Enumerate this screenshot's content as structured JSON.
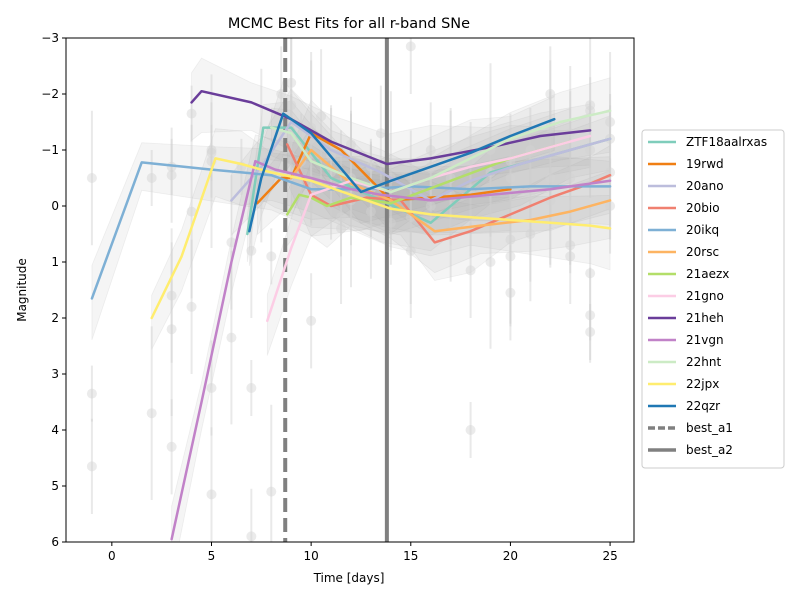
{
  "chart_data": {
    "type": "line",
    "title": "MCMC Best Fits for all r-band SNe",
    "xlabel": "Time [days]",
    "ylabel": "Magnitude",
    "xlim": [
      -2.3,
      26.2
    ],
    "ylim": [
      6,
      -3
    ],
    "y_inverted": true,
    "grid": false,
    "legend_position": "right-outside",
    "x_ticks": [
      "0",
      "5",
      "10",
      "15",
      "20",
      "25"
    ],
    "y_ticks": [
      "−3",
      "−2",
      "−1",
      "0",
      "1",
      "2",
      "3",
      "4",
      "5",
      "6"
    ],
    "series": [
      {
        "name": "ZTF18aalrxas",
        "color": "#7fcdbb",
        "x": [
          6.8,
          7.6,
          9.0,
          11.0,
          13.5,
          16.0,
          19.0,
          22.0,
          25.0
        ],
        "y": [
          0.5,
          -1.4,
          -1.4,
          -0.5,
          -0.1,
          0.3,
          -0.6,
          -0.9,
          -1.2
        ]
      },
      {
        "name": "19rwd",
        "color": "#f07f13",
        "x": [
          7.3,
          8.5,
          9.0,
          10.0,
          11.5,
          14.0,
          16.0,
          18.0,
          20.0
        ],
        "y": [
          -0.05,
          -0.5,
          -0.5,
          -1.3,
          -1.0,
          -0.1,
          -0.15,
          -0.2,
          -0.3
        ]
      },
      {
        "name": "20ano",
        "color": "#bcbddc",
        "x": [
          6.0,
          7.5,
          9.0,
          11.0,
          13.5,
          16.0,
          18.0,
          20.5,
          23.0,
          25.0
        ],
        "y": [
          -0.1,
          -0.7,
          -1.5,
          -1.0,
          -0.6,
          -0.1,
          -0.45,
          -0.75,
          -1.0,
          -1.2
        ]
      },
      {
        "name": "20bio",
        "color": "#f08070",
        "x": [
          8.8,
          10.0,
          11.0,
          12.8,
          14.5,
          16.2,
          18.0,
          20.0,
          22.0,
          24.0,
          25.0
        ],
        "y": [
          -1.1,
          -0.2,
          0.0,
          -0.15,
          -0.1,
          0.65,
          0.45,
          0.15,
          -0.15,
          -0.4,
          -0.55
        ]
      },
      {
        "name": "20ikq",
        "color": "#7eb0d5",
        "x": [
          -1.0,
          1.5,
          5.0,
          8.0,
          10.0,
          12.5,
          15.0,
          18.0,
          21.0,
          25.0
        ],
        "y": [
          1.65,
          -0.78,
          -0.65,
          -0.55,
          -0.3,
          -0.3,
          -0.35,
          -0.3,
          -0.35,
          -0.35
        ]
      },
      {
        "name": "20rsc",
        "color": "#fdb462",
        "x": [
          9.0,
          10.0,
          12.0,
          14.0,
          16.2,
          18.5,
          21.0,
          23.0,
          25.0
        ],
        "y": [
          -0.5,
          -1.0,
          -0.4,
          -0.1,
          0.45,
          0.35,
          0.25,
          0.1,
          -0.1
        ]
      },
      {
        "name": "21aezx",
        "color": "#b3de69",
        "x": [
          8.8,
          9.4,
          10.0,
          10.8,
          12.0,
          14.0,
          17.0,
          20.0,
          23.0
        ],
        "y": [
          0.15,
          -0.2,
          -0.15,
          0.0,
          -0.15,
          -0.05,
          -0.45,
          -0.85,
          -1.15
        ]
      },
      {
        "name": "21gno",
        "color": "#fccde5",
        "x": [
          7.8,
          9.0,
          10.0,
          12.0,
          14.0,
          16.0,
          18.0,
          20.0,
          22.0,
          24.0
        ],
        "y": [
          2.05,
          0.75,
          -0.2,
          -0.45,
          -0.25,
          -0.5,
          -0.7,
          -0.85,
          -1.05,
          -1.25
        ]
      },
      {
        "name": "21heh",
        "color": "#6a3d9a",
        "x": [
          4.0,
          4.5,
          7.0,
          9.0,
          11.0,
          13.8,
          16.0,
          19.0,
          21.5,
          24.0
        ],
        "y": [
          -1.85,
          -2.05,
          -1.85,
          -1.55,
          -1.15,
          -0.75,
          -0.85,
          -1.05,
          -1.25,
          -1.35
        ]
      },
      {
        "name": "21vgn",
        "color": "#c182c8",
        "x": [
          3.0,
          4.5,
          6.0,
          7.2,
          8.2,
          10.0,
          12.0,
          13.5,
          16.0,
          19.0,
          22.0,
          25.0
        ],
        "y": [
          5.95,
          3.5,
          1.0,
          -0.8,
          -0.65,
          -0.5,
          -0.3,
          -0.2,
          -0.1,
          -0.2,
          -0.3,
          -0.45
        ]
      },
      {
        "name": "22hnt",
        "color": "#ccebc5",
        "x": [
          8.0,
          9.0,
          10.0,
          12.0,
          14.0,
          16.0,
          18.0,
          20.0,
          22.5,
          25.0
        ],
        "y": [
          -1.4,
          -1.3,
          -0.8,
          -0.5,
          -0.25,
          -0.5,
          -0.85,
          -1.2,
          -1.5,
          -1.7
        ]
      },
      {
        "name": "22jpx",
        "color": "#ffed6f",
        "x": [
          2.0,
          3.5,
          5.2,
          6.5,
          8.0,
          10.0,
          12.0,
          14.0,
          16.0,
          18.0,
          20.0,
          22.0,
          24.0,
          25.0
        ],
        "y": [
          2.0,
          0.9,
          -0.85,
          -0.75,
          -0.6,
          -0.45,
          -0.2,
          0.05,
          0.15,
          0.2,
          0.25,
          0.3,
          0.35,
          0.4
        ]
      },
      {
        "name": "22qzr",
        "color": "#1f78b4",
        "x": [
          6.9,
          7.5,
          8.6,
          10.0,
          12.5,
          14.0,
          16.0,
          18.0,
          20.0,
          22.2
        ],
        "y": [
          0.45,
          -0.5,
          -1.65,
          -1.3,
          -0.25,
          -0.45,
          -0.7,
          -0.95,
          -1.25,
          -1.55
        ]
      }
    ],
    "vertical_lines": [
      {
        "name": "best_a1",
        "x": 8.7,
        "color": "#808080",
        "style": "dashed"
      },
      {
        "name": "best_a2",
        "x": 13.8,
        "color": "#808080",
        "style": "solid"
      }
    ],
    "scatter_observations": {
      "color": "#d3d3d3",
      "points": [
        [
          -1.0,
          3.35
        ],
        [
          -1.0,
          4.65
        ],
        [
          -1.0,
          -0.5
        ],
        [
          2.0,
          3.7
        ],
        [
          2.0,
          -0.5
        ],
        [
          3.0,
          4.3
        ],
        [
          3.0,
          1.6
        ],
        [
          3.0,
          2.2
        ],
        [
          3.0,
          -0.7
        ],
        [
          3.0,
          -0.55
        ],
        [
          4.0,
          1.8
        ],
        [
          4.0,
          0.1
        ],
        [
          4.0,
          -1.65
        ],
        [
          5.0,
          3.25
        ],
        [
          5.0,
          5.15
        ],
        [
          5.0,
          -0.8
        ],
        [
          5.0,
          -0.95
        ],
        [
          5.0,
          -1.0
        ],
        [
          6.0,
          0.65
        ],
        [
          6.0,
          2.35
        ],
        [
          7.0,
          3.25
        ],
        [
          7.0,
          5.9
        ],
        [
          7.0,
          0.8
        ],
        [
          8.0,
          5.1
        ],
        [
          8.0,
          0.9
        ],
        [
          8.5,
          -2.0
        ],
        [
          9.0,
          -2.2
        ],
        [
          9.0,
          -1.8
        ],
        [
          9.0,
          -1.5
        ],
        [
          10.0,
          2.05
        ],
        [
          10.0,
          -1.4
        ],
        [
          10.0,
          -1.2
        ],
        [
          10.0,
          -0.2
        ],
        [
          11.0,
          -0.9
        ],
        [
          11.0,
          -0.6
        ],
        [
          11.5,
          0.2
        ],
        [
          11.5,
          0.4
        ],
        [
          12.0,
          -1.1
        ],
        [
          12.0,
          -0.5
        ],
        [
          12.0,
          -0.1
        ],
        [
          13.0,
          -0.7
        ],
        [
          13.0,
          -0.3
        ],
        [
          13.0,
          0.1
        ],
        [
          14.0,
          -0.5
        ],
        [
          14.0,
          0.3
        ],
        [
          15.0,
          -2.85
        ],
        [
          15.0,
          0.8
        ],
        [
          15.0,
          0.2
        ],
        [
          16.0,
          -0.7
        ],
        [
          16.0,
          -1.0
        ],
        [
          17.0,
          -0.5
        ],
        [
          17.0,
          -0.2
        ],
        [
          18.0,
          4.0
        ],
        [
          18.0,
          1.15
        ],
        [
          18.0,
          -0.3
        ],
        [
          19.0,
          1.0
        ],
        [
          19.0,
          -0.6
        ],
        [
          20.0,
          1.55
        ],
        [
          20.0,
          0.9
        ],
        [
          20.0,
          0.6
        ],
        [
          20.0,
          -0.5
        ],
        [
          20.0,
          -0.8
        ],
        [
          21.0,
          0.5
        ],
        [
          21.0,
          -0.2
        ],
        [
          21.0,
          -1.0
        ],
        [
          22.0,
          -2.0
        ],
        [
          22.0,
          -1.4
        ],
        [
          22.0,
          -0.5
        ],
        [
          23.0,
          0.7
        ],
        [
          23.0,
          0.9
        ],
        [
          23.0,
          -1.3
        ],
        [
          23.0,
          -0.5
        ],
        [
          24.0,
          2.25
        ],
        [
          24.0,
          1.95
        ],
        [
          24.0,
          1.2
        ],
        [
          24.0,
          -1.7
        ],
        [
          24.0,
          -1.8
        ],
        [
          24.0,
          -1.0
        ],
        [
          25.0,
          -0.6
        ],
        [
          25.0,
          -1.2
        ],
        [
          25.0,
          -1.5
        ],
        [
          25.0,
          0.0
        ],
        [
          22.0,
          -0.1
        ],
        [
          19.0,
          -1.0
        ],
        [
          16.0,
          0.0
        ],
        [
          13.5,
          -1.3
        ],
        [
          10.5,
          -1.6
        ],
        [
          7.5,
          -0.9
        ],
        [
          6.5,
          -0.7
        ],
        [
          9.5,
          -0.8
        ]
      ]
    }
  }
}
